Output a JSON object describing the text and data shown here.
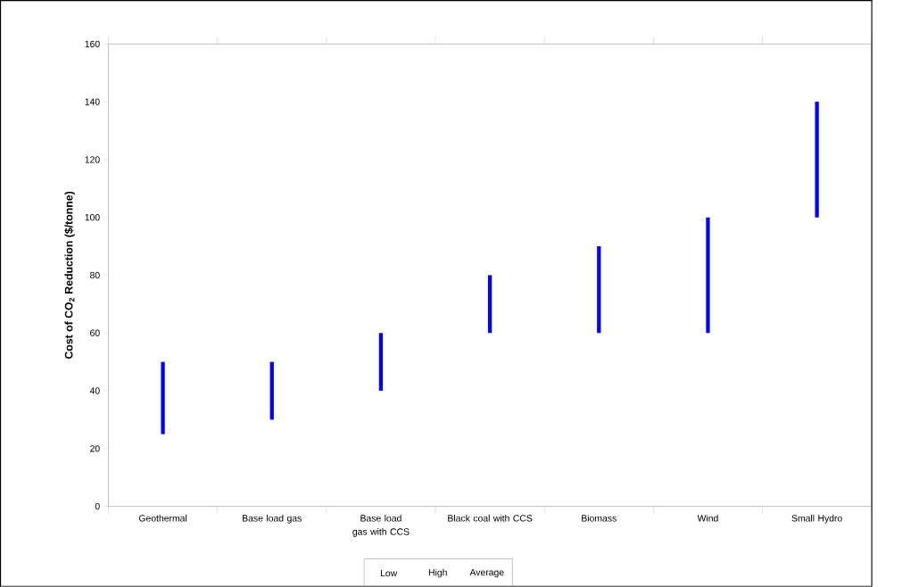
{
  "chart_data": {
    "type": "bar",
    "ylabel": "Cost of CO$_{2}$ Reduction ($/tonne)",
    "categories": [
      "Geothermal",
      "Base load gas",
      "Base load gas with CCS",
      "Black coal with CCS",
      "Biomass",
      "Wind",
      "Small Hydro"
    ],
    "base": [
      25,
      30,
      40,
      60,
      60,
      60,
      100
    ],
    "values": [
      25,
      20,
      20,
      20,
      30,
      40,
      40
    ],
    "color": "#0000ff",
    "ylim": [
      0,
      160
    ],
    "yticks": [
      0,
      20,
      40,
      60,
      80,
      100,
      120,
      140,
      160
    ],
    "annotations": [
      "Low",
      "High",
      "Average"
    ]
  }
}
